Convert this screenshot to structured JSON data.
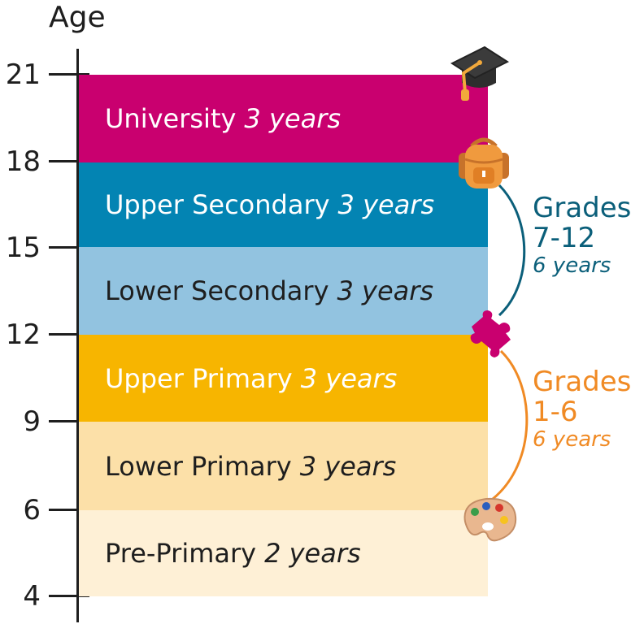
{
  "axis": {
    "title": "Age",
    "ticks": [
      "21",
      "18",
      "15",
      "12",
      "9",
      "6",
      "4"
    ]
  },
  "stages": [
    {
      "name": "University",
      "duration": "3 years",
      "color": "#c9006f",
      "text_color": "#ffffff"
    },
    {
      "name": "Upper Secondary",
      "duration": "3 years",
      "color": "#0384b3",
      "text_color": "#ffffff"
    },
    {
      "name": "Lower Secondary",
      "duration": "3 years",
      "color": "#92c3e0",
      "text_color": "#1e1e1e"
    },
    {
      "name": "Upper Primary",
      "duration": "3 years",
      "color": "#f7b500",
      "text_color": "#ffffff"
    },
    {
      "name": "Lower Primary",
      "duration": "3 years",
      "color": "#fce0a8",
      "text_color": "#1e1e1e"
    },
    {
      "name": "Pre-Primary",
      "duration": "2 years",
      "color": "#fef0d6",
      "text_color": "#1e1e1e"
    }
  ],
  "groups": [
    {
      "heading": "Grades",
      "range": "7-12",
      "duration": "6 years",
      "color": "#0b5f7a"
    },
    {
      "heading": "Grades",
      "range": "1-6",
      "duration": "6 years",
      "color": "#f08a24"
    }
  ],
  "icons": [
    "graduation-cap-icon",
    "backpack-icon",
    "puzzle-piece-icon",
    "paint-palette-icon"
  ]
}
